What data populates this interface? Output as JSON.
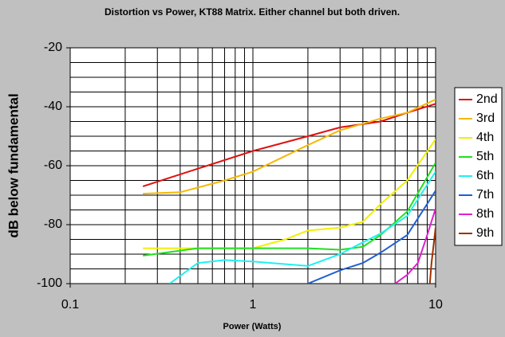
{
  "chart_data": {
    "type": "line",
    "title": "Distortion vs Power, KT88 Matrix. Either channel but both driven.",
    "x_label": "Power (Watts)",
    "y_label": "dB below fundamental",
    "x_scale": "log",
    "xlim": [
      0.1,
      10
    ],
    "xticks": [
      0.1,
      1,
      10
    ],
    "x_minor_ticks": [
      0.2,
      0.3,
      0.4,
      0.5,
      0.6,
      0.7,
      0.8,
      0.9,
      2,
      3,
      4,
      5,
      6,
      7,
      8,
      9
    ],
    "ylim": [
      -100,
      -20
    ],
    "yticks": [
      -100,
      -80,
      -60,
      -40,
      -20
    ],
    "y_minor_ticks": [
      -95,
      -90,
      -85,
      -75,
      -70,
      -65,
      -55,
      -50,
      -45,
      -35,
      -30,
      -25
    ],
    "grid": true,
    "legend": "right",
    "series": [
      {
        "name": "2nd",
        "color": "#e01010",
        "x": [
          0.25,
          0.5,
          1,
          2,
          3,
          5,
          7,
          10
        ],
        "values": [
          -67,
          -61,
          -55,
          -50,
          -47,
          -45,
          -42,
          -39
        ]
      },
      {
        "name": "3rd",
        "color": "#f5b800",
        "x": [
          0.25,
          0.4,
          0.7,
          1,
          2,
          3,
          5,
          7,
          10
        ],
        "values": [
          -69.5,
          -69,
          -65,
          -62,
          -53,
          -48,
          -44,
          -42,
          -37.5
        ]
      },
      {
        "name": "4th",
        "color": "#f0f000",
        "x": [
          0.25,
          1,
          1.5,
          2,
          3,
          4,
          5,
          7,
          10
        ],
        "values": [
          -88,
          -88,
          -85,
          -82,
          -81,
          -79,
          -73,
          -65,
          -51
        ]
      },
      {
        "name": "5th",
        "color": "#20e020",
        "x": [
          0.25,
          0.5,
          1,
          2,
          3,
          4,
          5,
          7,
          10
        ],
        "values": [
          -90.5,
          -88,
          -88,
          -88,
          -88.5,
          -87.5,
          -83.5,
          -75.5,
          -59
        ]
      },
      {
        "name": "6th",
        "color": "#20f0f0",
        "x": [
          0.35,
          0.5,
          0.7,
          1,
          2,
          3,
          4,
          5,
          7,
          10
        ],
        "values": [
          -100,
          -93,
          -92,
          -92.5,
          -94,
          -90,
          -86,
          -83,
          -77,
          -62
        ]
      },
      {
        "name": "7th",
        "color": "#2060d0",
        "x": [
          2,
          3,
          4,
          5,
          7,
          10
        ],
        "values": [
          -100,
          -95.5,
          -93,
          -89.5,
          -83.5,
          -68.5
        ]
      },
      {
        "name": "8th",
        "color": "#e020d0",
        "x": [
          6,
          7,
          8,
          9,
          10
        ],
        "values": [
          -100,
          -97,
          -93,
          -83.5,
          -74.5
        ]
      },
      {
        "name": "9th",
        "color": "#a03000",
        "x": [
          9.3,
          9.5,
          10
        ],
        "values": [
          -100,
          -93,
          -81
        ]
      }
    ]
  }
}
